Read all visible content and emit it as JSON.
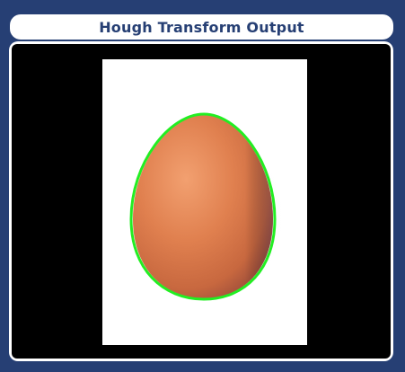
{
  "window": {
    "title": "Hough Transform Output"
  },
  "output": {
    "image_subject": "egg",
    "detected_shape": "ellipse",
    "outline_color": "#22ee22"
  },
  "colors": {
    "background": "#263f74",
    "panel": "#ffffff",
    "canvas": "#000000",
    "accent": "#263f74"
  }
}
